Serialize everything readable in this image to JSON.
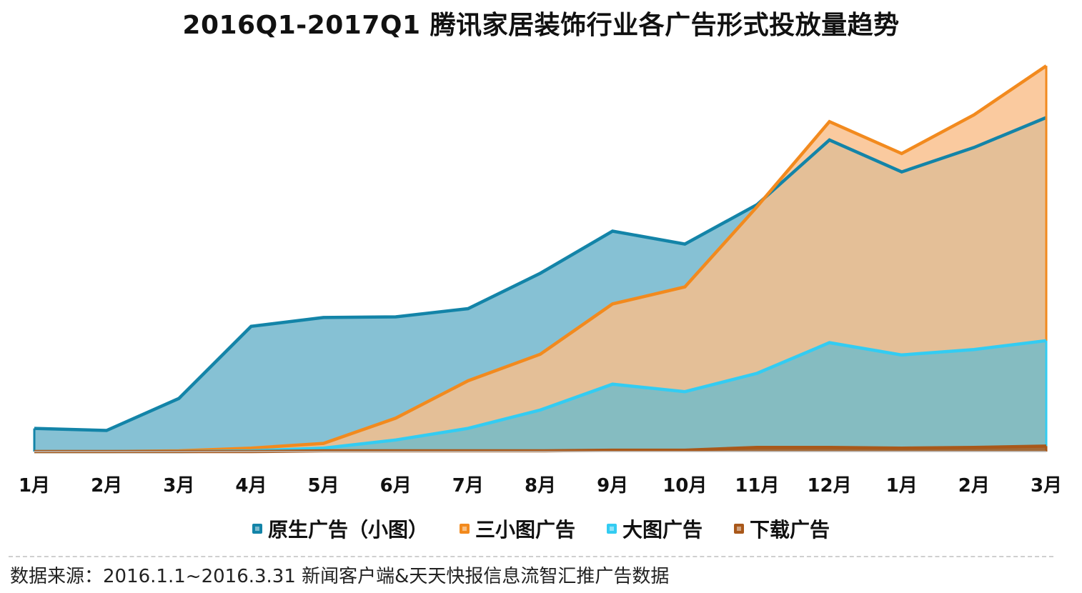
{
  "chart_data": {
    "type": "area",
    "title": "2016Q1-2017Q1 腾讯家居装饰行业各广告形式投放量趋势",
    "categories": [
      "1月",
      "2月",
      "3月",
      "4月",
      "5月",
      "6月",
      "7月",
      "8月",
      "9月",
      "10月",
      "11月",
      "12月",
      "1月",
      "2月",
      "3月"
    ],
    "ylim": [
      0,
      565
    ],
    "grid": false,
    "legend_position": "bottom",
    "series": [
      {
        "name": "原生广告（小图）",
        "color": "#1384A8",
        "fill": "#86C1D4",
        "values": [
          34,
          31,
          78,
          184,
          197,
          198,
          210,
          262,
          324,
          305,
          363,
          458,
          411,
          447,
          491
        ]
      },
      {
        "name": "三小图广告",
        "color": "#F28A1E",
        "fill": "#F9BE8A",
        "values": [
          0,
          0,
          1,
          5,
          12,
          49,
          104,
          143,
          217,
          242,
          360,
          485,
          438,
          495,
          567
        ]
      },
      {
        "name": "大图广告",
        "color": "#33CCF2",
        "fill": "#70BBCB",
        "values": [
          0,
          0,
          0,
          1,
          5,
          17,
          34,
          61,
          99,
          88,
          115,
          160,
          142,
          150,
          163
        ]
      },
      {
        "name": "下载广告",
        "color": "#A9581A",
        "fill": "#A9581A",
        "values": [
          0,
          0,
          0,
          0,
          1,
          1,
          1,
          1,
          2,
          2,
          6,
          6,
          5,
          6,
          8
        ]
      }
    ]
  },
  "source": "数据来源：2016.1.1~2016.3.31 新闻客户端&天天快报信息流智汇推广告数据"
}
